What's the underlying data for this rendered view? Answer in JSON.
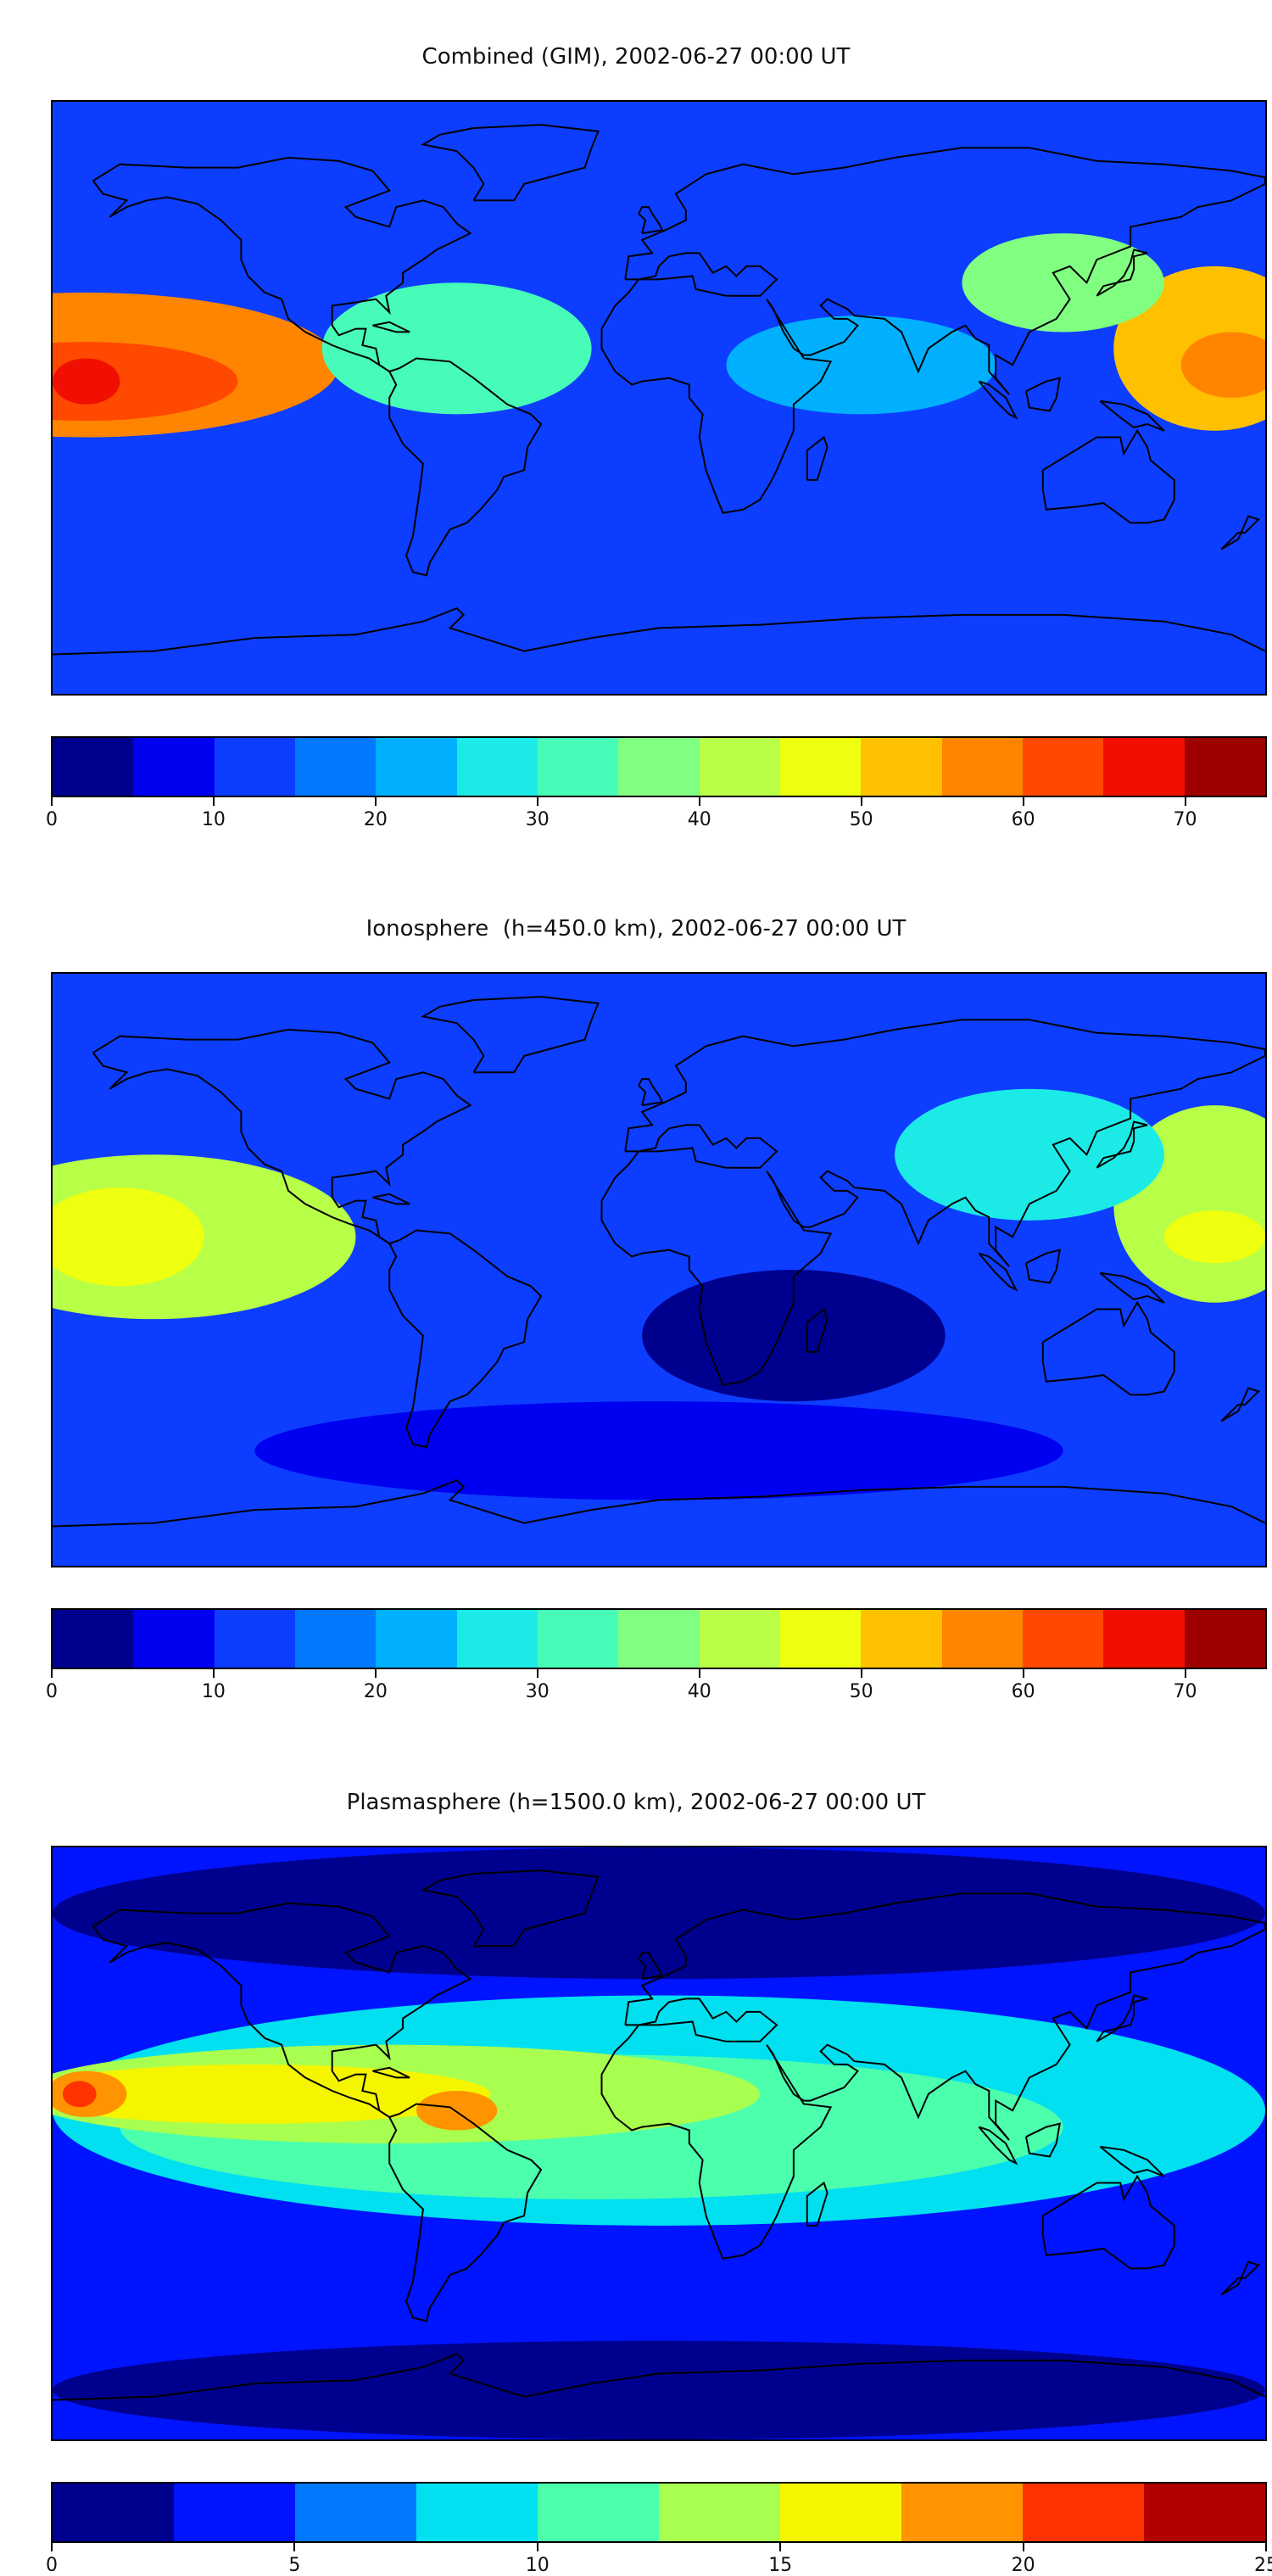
{
  "panels": [
    {
      "title": "Combined (GIM), 2002-06-27 00:00 UT",
      "colorbar": {
        "ticks": [
          "0",
          "10",
          "20",
          "30",
          "40",
          "50",
          "60",
          "70"
        ],
        "tick_values": [
          0,
          10,
          20,
          30,
          40,
          50,
          60,
          70
        ],
        "range": [
          0,
          75
        ],
        "colors": [
          "#00008f",
          "#0000f0",
          "#0d3dff",
          "#0079ff",
          "#00b0ff",
          "#1ceae6",
          "#47fcb8",
          "#80ff80",
          "#b8ff47",
          "#eeff10",
          "#ffc000",
          "#ff8500",
          "#ff4800",
          "#f00f00",
          "#9e0000"
        ]
      },
      "base_color": "#0d3dff",
      "blobs": [
        {
          "lon": -170,
          "lat": 10,
          "rx": 75,
          "ry": 22,
          "color": "#ff8500"
        },
        {
          "lon": -170,
          "lat": 5,
          "rx": 45,
          "ry": 12,
          "color": "#ff4800"
        },
        {
          "lon": -170,
          "lat": 5,
          "rx": 10,
          "ry": 7,
          "color": "#f00f00"
        },
        {
          "lon": 165,
          "lat": 15,
          "rx": 30,
          "ry": 25,
          "color": "#ffc000"
        },
        {
          "lon": 170,
          "lat": 10,
          "rx": 15,
          "ry": 10,
          "color": "#ff8500"
        },
        {
          "lon": 120,
          "lat": 35,
          "rx": 30,
          "ry": 15,
          "color": "#80ff80"
        },
        {
          "lon": -60,
          "lat": 15,
          "rx": 40,
          "ry": 20,
          "color": "#47fcb8"
        },
        {
          "lon": 60,
          "lat": 10,
          "rx": 40,
          "ry": 15,
          "color": "#00b0ff"
        }
      ]
    },
    {
      "title": "Ionosphere  (h=450.0 km), 2002-06-27 00:00 UT",
      "colorbar": {
        "ticks": [
          "0",
          "10",
          "20",
          "30",
          "40",
          "50",
          "60",
          "70"
        ],
        "tick_values": [
          0,
          10,
          20,
          30,
          40,
          50,
          60,
          70
        ],
        "range": [
          0,
          75
        ],
        "colors": [
          "#00008f",
          "#0000f0",
          "#0d3dff",
          "#0079ff",
          "#00b0ff",
          "#1ceae6",
          "#47fcb8",
          "#80ff80",
          "#b8ff47",
          "#eeff10",
          "#ffc000",
          "#ff8500",
          "#ff4800",
          "#f00f00",
          "#9e0000"
        ]
      },
      "base_color": "#0d3dff",
      "blobs": [
        {
          "lon": -150,
          "lat": 10,
          "rx": 60,
          "ry": 25,
          "color": "#b8ff47"
        },
        {
          "lon": -160,
          "lat": 10,
          "rx": 25,
          "ry": 15,
          "color": "#eeff10"
        },
        {
          "lon": 165,
          "lat": 20,
          "rx": 30,
          "ry": 30,
          "color": "#b8ff47"
        },
        {
          "lon": 165,
          "lat": 10,
          "rx": 15,
          "ry": 8,
          "color": "#eeff10"
        },
        {
          "lon": 40,
          "lat": -20,
          "rx": 45,
          "ry": 20,
          "color": "#00008f"
        },
        {
          "lon": 110,
          "lat": 35,
          "rx": 40,
          "ry": 20,
          "color": "#1ceae6"
        },
        {
          "lon": 0,
          "lat": -55,
          "rx": 120,
          "ry": 15,
          "color": "#0000f0"
        }
      ]
    },
    {
      "title": "Plasmasphere (h=1500.0 km), 2002-06-27 00:00 UT",
      "colorbar": {
        "ticks": [
          "0",
          "5",
          "10",
          "15",
          "20",
          "25"
        ],
        "tick_values": [
          0,
          5,
          10,
          15,
          20,
          25
        ],
        "range": [
          0,
          25
        ],
        "colors": [
          "#00008f",
          "#0014ff",
          "#0079ff",
          "#00e0f0",
          "#4bffad",
          "#a8ff4f",
          "#f5f500",
          "#ff9400",
          "#ff3300",
          "#b20000"
        ]
      },
      "base_color": "#0014ff",
      "blobs": [
        {
          "lon": 0,
          "lat": 10,
          "rx": 180,
          "ry": 35,
          "color": "#00e0f0"
        },
        {
          "lon": -20,
          "lat": 5,
          "rx": 140,
          "ry": 22,
          "color": "#4bffad"
        },
        {
          "lon": -80,
          "lat": 15,
          "rx": 110,
          "ry": 15,
          "color": "#a8ff4f"
        },
        {
          "lon": -120,
          "lat": 15,
          "rx": 70,
          "ry": 9,
          "color": "#f5f500"
        },
        {
          "lon": -170,
          "lat": 15,
          "rx": 12,
          "ry": 7,
          "color": "#ff9400"
        },
        {
          "lon": -172,
          "lat": 15,
          "rx": 5,
          "ry": 4,
          "color": "#ff3300"
        },
        {
          "lon": -60,
          "lat": 10,
          "rx": 12,
          "ry": 6,
          "color": "#ff9400"
        },
        {
          "lon": 0,
          "lat": 70,
          "rx": 180,
          "ry": 20,
          "color": "#00008f"
        },
        {
          "lon": 0,
          "lat": -75,
          "rx": 180,
          "ry": 15,
          "color": "#00008f"
        }
      ]
    }
  ]
}
